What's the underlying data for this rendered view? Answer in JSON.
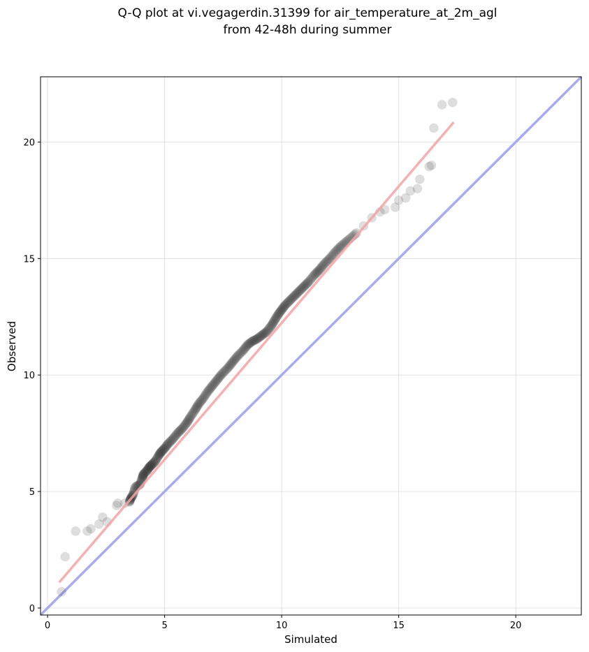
{
  "chart_data": {
    "type": "scatter",
    "title": "Q-Q plot at vi.vegagerdin.31399 for air_temperature_at_2m_agl",
    "subtitle": "from 42-48h during summer",
    "xlabel": "Simulated",
    "ylabel": "Observed",
    "xlim": [
      -0.3,
      22.8
    ],
    "ylim": [
      -0.3,
      22.8
    ],
    "xticks": [
      0,
      5,
      10,
      15,
      20
    ],
    "yticks": [
      0,
      5,
      10,
      15,
      20
    ],
    "xtick_labels": [
      "0",
      "5",
      "10",
      "15",
      "20"
    ],
    "ytick_labels": [
      "0",
      "5",
      "10",
      "15",
      "20"
    ],
    "grid": true,
    "reference_line": {
      "from": [
        -0.3,
        -0.3
      ],
      "to": [
        22.8,
        22.8
      ],
      "color": "#a9abf2"
    },
    "fit_line": {
      "from": [
        0.5,
        1.1
      ],
      "to": [
        17.35,
        20.85
      ],
      "color": "#f3a3a3"
    },
    "points_color": "#333333",
    "quantiles": {
      "x": [
        0.6,
        0.75,
        1.2,
        1.7,
        1.85,
        2.2,
        2.35,
        2.55,
        2.95,
        3.0,
        3.3,
        3.5,
        3.55,
        3.65,
        3.75,
        3.95,
        4.05,
        4.1,
        4.25,
        4.35,
        4.45,
        4.6,
        4.75,
        4.85,
        5.0,
        5.15,
        5.35,
        5.55,
        5.75,
        5.95,
        6.1,
        6.3,
        6.45,
        6.65,
        6.85,
        7.05,
        7.25,
        7.45,
        7.7,
        7.9,
        8.1,
        8.35,
        8.55,
        8.75,
        8.95,
        9.15,
        9.35,
        9.55,
        9.7,
        9.85,
        10.0,
        10.15,
        10.35,
        10.55,
        10.75,
        10.95,
        11.15,
        11.4,
        11.6,
        11.8,
        12.05,
        12.3,
        12.55,
        12.85,
        13.2,
        13.5,
        13.85,
        14.2,
        14.4,
        14.85,
        15.0,
        15.3,
        15.5,
        15.8,
        15.9,
        16.3,
        16.4,
        16.5,
        16.85,
        17.3
      ],
      "y": [
        0.7,
        2.2,
        3.3,
        3.3,
        3.4,
        3.6,
        3.9,
        3.7,
        4.4,
        4.5,
        4.5,
        4.55,
        4.7,
        4.85,
        5.2,
        5.3,
        5.6,
        5.75,
        5.9,
        6.05,
        6.15,
        6.3,
        6.55,
        6.7,
        6.85,
        7.05,
        7.25,
        7.5,
        7.7,
        7.95,
        8.2,
        8.5,
        8.75,
        9.0,
        9.3,
        9.55,
        9.8,
        10.05,
        10.3,
        10.55,
        10.8,
        11.05,
        11.3,
        11.45,
        11.55,
        11.7,
        11.85,
        12.1,
        12.35,
        12.6,
        12.8,
        13.0,
        13.2,
        13.4,
        13.6,
        13.8,
        14.0,
        14.3,
        14.5,
        14.75,
        15.0,
        15.3,
        15.55,
        15.8,
        16.1,
        16.4,
        16.75,
        17.0,
        17.1,
        17.2,
        17.5,
        17.6,
        17.9,
        18.0,
        18.4,
        18.95,
        19.0,
        20.6,
        21.6,
        21.7
      ]
    }
  }
}
